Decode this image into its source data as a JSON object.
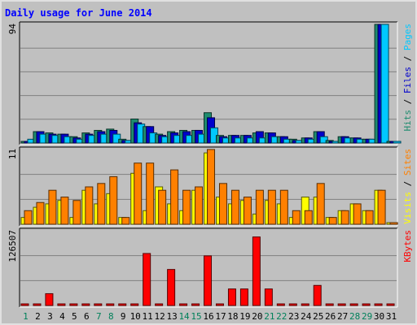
{
  "chart_data": {
    "title": "Daily usage for June 2014",
    "days": [
      "1",
      "2",
      "3",
      "4",
      "5",
      "6",
      "7",
      "8",
      "9",
      "10",
      "11",
      "12",
      "13",
      "14",
      "15",
      "16",
      "17",
      "18",
      "19",
      "20",
      "21",
      "22",
      "23",
      "24",
      "25",
      "26",
      "27",
      "28",
      "29",
      "30",
      "31"
    ],
    "weekend_days": [
      "1",
      "7",
      "8",
      "14",
      "15",
      "21",
      "22",
      "28",
      "29"
    ],
    "colors": {
      "background": "#c0c0c0",
      "frame": "#e0e0e0",
      "gridline": "#808080",
      "title": "#0000ff",
      "hits": "#1e8c6e",
      "files": "#0000cc",
      "pages": "#00c8ff",
      "visits": "#ffff00",
      "sites": "#ff8000",
      "kbytes": "#ff0000",
      "weekday_label": "#000000",
      "weekend_label": "#00805a"
    },
    "panels": [
      {
        "id": "top",
        "type": "bar",
        "max_label": "94",
        "ymax": 94,
        "legend": [
          {
            "text": "Hits",
            "color": "#1e8c6e"
          },
          {
            "text": " / ",
            "color": "#000000"
          },
          {
            "text": "Files",
            "color": "#0000cc"
          },
          {
            "text": " / ",
            "color": "#000000"
          },
          {
            "text": "Pages",
            "color": "#00c8ff"
          }
        ],
        "series": [
          {
            "name": "Hits",
            "values": [
              0,
              9,
              8,
              7,
              5,
              8,
              10,
              11,
              3,
              19,
              13,
              7,
              9,
              10,
              10,
              24,
              6,
              6,
              6,
              8,
              8,
              5,
              3,
              4,
              9,
              2,
              5,
              4,
              3,
              94,
              0
            ]
          },
          {
            "name": "Files",
            "values": [
              0,
              9,
              7,
              7,
              4,
              7,
              9,
              10,
              2,
              16,
              13,
              6,
              8,
              9,
              10,
              20,
              5,
              6,
              6,
              9,
              8,
              5,
              2,
              4,
              9,
              1,
              5,
              4,
              3,
              94,
              0
            ]
          },
          {
            "name": "Pages",
            "values": [
              3,
              7,
              6,
              5,
              3,
              6,
              7,
              7,
              2,
              15,
              8,
              5,
              6,
              6,
              7,
              12,
              4,
              4,
              4,
              4,
              5,
              3,
              2,
              3,
              5,
              1,
              4,
              3,
              3,
              94,
              0
            ]
          }
        ]
      },
      {
        "id": "middle",
        "type": "bar",
        "max_label": "11",
        "ymax": 11,
        "legend": [
          {
            "text": "Visits",
            "color": "#ffff00"
          },
          {
            "text": " / ",
            "color": "#000000"
          },
          {
            "text": "Sites",
            "color": "#ff8000"
          }
        ],
        "series": [
          {
            "name": "Visits",
            "values": [
              1,
              2.5,
              3,
              3.5,
              1,
              5,
              3,
              4.5,
              1,
              7.5,
              2,
              5.5,
              3,
              2,
              5,
              10.5,
              4,
              3,
              3.5,
              1.5,
              3.5,
              3,
              1,
              4,
              4,
              1,
              2,
              3,
              2,
              5,
              0
            ]
          },
          {
            "name": "Sites",
            "values": [
              2,
              3.2,
              5,
              4,
              3.5,
              5.5,
              6,
              7,
              1,
              9,
              9,
              5,
              8,
              5,
              5.5,
              11,
              6,
              5,
              4,
              5,
              5,
              5,
              2,
              2,
              6,
              1,
              2,
              3,
              2,
              5,
              0
            ]
          }
        ]
      },
      {
        "id": "bottom",
        "type": "bar",
        "max_label": "126507",
        "ymax": 126507,
        "legend": [
          {
            "text": "KBytes",
            "color": "#ff0000"
          }
        ],
        "series": [
          {
            "name": "KBytes",
            "values": [
              0,
              0,
              20000,
              0,
              0,
              0,
              0,
              0,
              0,
              0,
              88000,
              0,
              61000,
              0,
              0,
              84000,
              0,
              28000,
              28000,
              116000,
              28000,
              0,
              0,
              0,
              34000,
              0,
              0,
              0,
              0,
              0,
              0
            ]
          }
        ]
      }
    ]
  }
}
